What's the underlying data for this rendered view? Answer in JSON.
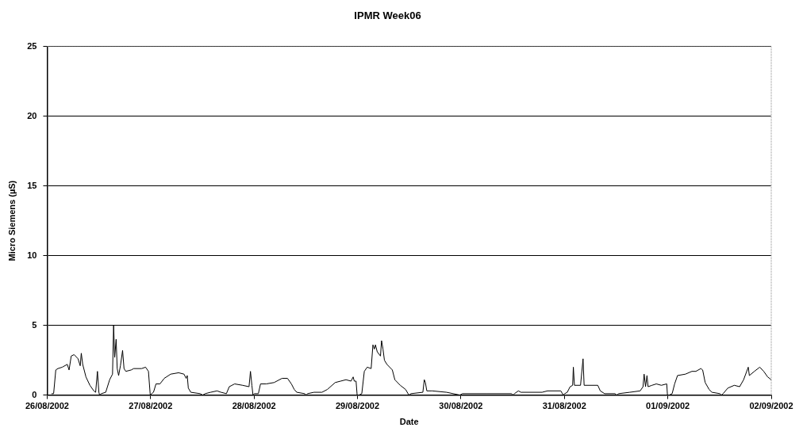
{
  "chart_data": {
    "type": "line",
    "title": "IPMR Week06",
    "xlabel": "Date",
    "ylabel": "Micro Siemens (µS)",
    "xlim": [
      "2002-08-26T00:00",
      "2002-09-02T00:00"
    ],
    "xticks": [
      {
        "value": "2002-08-26T00:00",
        "label": "26/08/2002"
      },
      {
        "value": "2002-08-27T00:00",
        "label": "27/08/2002"
      },
      {
        "value": "2002-08-28T00:00",
        "label": "28/08/2002"
      },
      {
        "value": "2002-08-29T00:00",
        "label": "29/08/2002"
      },
      {
        "value": "2002-08-30T00:00",
        "label": "30/08/2002"
      },
      {
        "value": "2002-08-31T00:00",
        "label": "31/08/2002"
      },
      {
        "value": "2002-09-01T00:00",
        "label": "01/09/2002"
      },
      {
        "value": "2002-09-02T00:00",
        "label": "02/09/2002"
      }
    ],
    "ylim": [
      0,
      25
    ],
    "yticks": [
      0,
      5,
      10,
      15,
      20,
      25
    ],
    "grid": "y",
    "legend": false,
    "x": [
      "2002-08-26T01:00",
      "2002-08-26T01:30",
      "2002-08-26T02:00",
      "2002-08-26T02:30",
      "2002-08-26T03:30",
      "2002-08-26T04:40",
      "2002-08-26T05:05",
      "2002-08-26T05:35",
      "2002-08-26T06:15",
      "2002-08-26T07:10",
      "2002-08-26T07:40",
      "2002-08-26T07:55",
      "2002-08-26T08:15",
      "2002-08-26T09:00",
      "2002-08-26T09:55",
      "2002-08-26T10:50",
      "2002-08-26T11:15",
      "2002-08-26T11:40",
      "2002-08-26T12:00",
      "2002-08-26T12:10",
      "2002-08-26T12:35",
      "2002-08-26T13:35",
      "2002-08-26T14:30",
      "2002-08-26T15:10",
      "2002-08-26T15:25",
      "2002-08-26T15:40",
      "2002-08-26T16:00",
      "2002-08-26T16:15",
      "2002-08-26T16:35",
      "2002-08-26T17:00",
      "2002-08-26T17:30",
      "2002-08-26T17:50",
      "2002-08-26T18:15",
      "2002-08-26T19:30",
      "2002-08-26T20:05",
      "2002-08-26T21:55",
      "2002-08-26T22:50",
      "2002-08-26T23:30",
      "2002-08-26T23:55",
      "2002-08-27T00:15",
      "2002-08-27T00:40",
      "2002-08-27T01:15",
      "2002-08-27T02:10",
      "2002-08-27T03:10",
      "2002-08-27T04:40",
      "2002-08-27T06:30",
      "2002-08-27T07:45",
      "2002-08-27T08:15",
      "2002-08-27T08:30",
      "2002-08-27T08:45",
      "2002-08-27T09:20",
      "2002-08-27T11:30",
      "2002-08-27T12:05",
      "2002-08-27T12:40",
      "2002-08-27T13:55",
      "2002-08-27T15:25",
      "2002-08-27T16:20",
      "2002-08-27T17:35",
      "2002-08-27T18:15",
      "2002-08-27T19:30",
      "2002-08-27T21:20",
      "2002-08-27T22:50",
      "2002-08-27T23:10",
      "2002-08-27T23:30",
      "2002-08-27T23:45",
      "2002-08-28T00:05",
      "2002-08-28T01:00",
      "2002-08-28T01:30",
      "2002-08-28T02:50",
      "2002-08-28T04:40",
      "2002-08-28T06:30",
      "2002-08-28T07:45",
      "2002-08-28T08:40",
      "2002-08-28T09:20",
      "2002-08-28T09:55",
      "2002-08-28T11:45",
      "2002-08-28T12:05",
      "2002-08-28T12:25",
      "2002-08-28T13:55",
      "2002-08-28T15:45",
      "2002-08-28T17:00",
      "2002-08-28T18:50",
      "2002-08-28T20:05",
      "2002-08-28T21:20",
      "2002-08-28T22:30",
      "2002-08-28T23:00",
      "2002-08-28T23:15",
      "2002-08-28T23:40",
      "2002-08-28T23:55",
      "2002-08-29T00:20",
      "2002-08-29T01:00",
      "2002-08-29T01:35",
      "2002-08-29T02:15",
      "2002-08-29T03:10",
      "2002-08-29T03:35",
      "2002-08-29T03:55",
      "2002-08-29T04:10",
      "2002-08-29T04:35",
      "2002-08-29T05:20",
      "2002-08-29T05:35",
      "2002-08-29T05:55",
      "2002-08-29T06:15",
      "2002-08-29T06:50",
      "2002-08-29T08:05",
      "2002-08-29T08:40",
      "2002-08-29T09:55",
      "2002-08-29T11:10",
      "2002-08-29T11:55",
      "2002-08-29T12:25",
      "2002-08-29T15:10",
      "2002-08-29T15:30",
      "2002-08-29T15:45",
      "2002-08-29T16:05",
      "2002-08-29T17:20",
      "2002-08-29T20:40",
      "2002-08-29T23:45",
      "2002-08-30T00:20",
      "2002-08-30T05:55",
      "2002-08-30T11:45",
      "2002-08-30T12:05",
      "2002-08-30T12:25",
      "2002-08-30T13:20",
      "2002-08-30T13:55",
      "2002-08-30T18:50",
      "2002-08-30T20:05",
      "2002-08-30T23:10",
      "2002-08-30T23:45",
      "2002-08-31T00:05",
      "2002-08-31T00:40",
      "2002-08-31T01:20",
      "2002-08-31T01:55",
      "2002-08-31T02:05",
      "2002-08-31T02:20",
      "2002-08-31T03:45",
      "2002-08-31T04:20",
      "2002-08-31T04:35",
      "2002-08-31T07:45",
      "2002-08-31T08:20",
      "2002-08-31T09:20",
      "2002-08-31T11:45",
      "2002-08-31T12:10",
      "2002-08-31T12:35",
      "2002-08-31T15:10",
      "2002-08-31T17:35",
      "2002-08-31T18:15",
      "2002-08-31T18:30",
      "2002-08-31T18:50",
      "2002-08-31T19:10",
      "2002-08-31T19:25",
      "2002-08-31T20:20",
      "2002-08-31T21:20",
      "2002-08-31T22:30",
      "2002-08-31T23:45",
      "2002-08-31T23:55",
      "2002-09-01T00:20",
      "2002-09-01T01:00",
      "2002-09-01T01:35",
      "2002-09-01T02:15",
      "2002-09-01T04:05",
      "2002-09-01T05:35",
      "2002-09-01T06:30",
      "2002-09-01T07:40",
      "2002-09-01T08:05",
      "2002-09-01T08:40",
      "2002-09-01T09:35",
      "2002-09-01T10:15",
      "2002-09-01T12:05",
      "2002-09-01T12:25",
      "2002-09-01T12:50",
      "2002-09-01T13:55",
      "2002-09-01T15:25",
      "2002-09-01T16:40",
      "2002-09-01T17:35",
      "2002-09-01T18:40",
      "2002-09-01T18:55",
      "2002-09-01T20:05",
      "2002-09-01T21:20",
      "2002-09-01T22:15",
      "2002-09-01T23:10",
      "2002-09-02T00:00"
    ],
    "series": [
      {
        "color": "#000000",
        "values": [
          0.1,
          0.1,
          1.8,
          1.9,
          2.0,
          2.2,
          1.8,
          2.8,
          2.9,
          2.6,
          2.1,
          3.0,
          2.2,
          1.3,
          0.7,
          0.3,
          0.2,
          1.7,
          0.2,
          0,
          0.1,
          0.2,
          1.1,
          1.5,
          5.0,
          2.7,
          4.0,
          1.9,
          1.4,
          2.1,
          3.2,
          1.9,
          1.7,
          1.8,
          1.9,
          1.9,
          2.0,
          1.7,
          0,
          0.1,
          0.2,
          0.8,
          0.8,
          1.2,
          1.5,
          1.6,
          1.5,
          1.2,
          1.4,
          0.5,
          0.2,
          0.1,
          0,
          0.1,
          0.2,
          0.3,
          0.2,
          0.1,
          0.6,
          0.8,
          0.7,
          0.6,
          1.7,
          0.7,
          0,
          0.1,
          0.1,
          0.8,
          0.8,
          0.9,
          1.2,
          1.2,
          0.8,
          0.4,
          0.2,
          0.1,
          0,
          0.1,
          0.2,
          0.2,
          0.4,
          0.9,
          1.0,
          1.1,
          1.0,
          1.3,
          1.0,
          1.0,
          0,
          0,
          0.1,
          1.7,
          2.0,
          1.9,
          3.6,
          3.3,
          3.6,
          3.1,
          2.8,
          3.9,
          3.3,
          2.5,
          2.2,
          1.8,
          1.1,
          0.7,
          0.4,
          0,
          0.1,
          0.2,
          1.1,
          0.9,
          0.3,
          0.3,
          0.2,
          0,
          0.1,
          0.1,
          0.1,
          0,
          0.1,
          0.3,
          0.2,
          0.2,
          0.3,
          0.3,
          0,
          0.1,
          0.2,
          0.6,
          0.7,
          2.0,
          0.7,
          0.7,
          2.6,
          0.7,
          0.7,
          0.3,
          0.1,
          0.1,
          0,
          0.1,
          0.2,
          0.3,
          0.6,
          1.5,
          0.6,
          1.4,
          0.6,
          0.7,
          0.8,
          0.7,
          0.8,
          0,
          0,
          0.1,
          0.8,
          1.4,
          1.5,
          1.7,
          1.7,
          1.9,
          1.8,
          0.9,
          0.4,
          0.2,
          0.1,
          0,
          0.1,
          0.5,
          0.7,
          0.6,
          1.1,
          2.0,
          1.4,
          1.7,
          2.0,
          1.7,
          1.3,
          1.1
        ]
      }
    ]
  }
}
